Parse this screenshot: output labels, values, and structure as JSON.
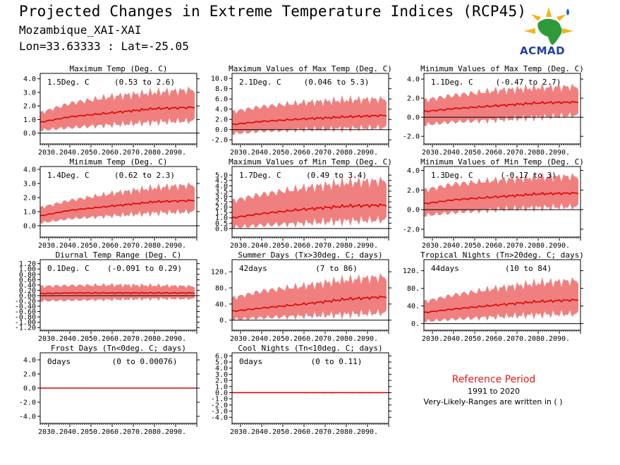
{
  "header": {
    "title": "Projected Changes in Extreme Temperature Indices (RCP45)",
    "region": "Mozambique_XAI-XAI",
    "coords": "Lon=33.63333 : Lat=-25.05"
  },
  "logo": {
    "text": "ACMAD"
  },
  "reference": {
    "title": "Reference Period",
    "years": "1991 to 2020",
    "note": "Very-Likely-Ranges are written in ( )"
  },
  "colors": {
    "band": "#f08080",
    "line": "#e00000",
    "zero": "#000000",
    "ref_title": "#e01a1a"
  },
  "chart_data": [
    {
      "type": "area",
      "title": "Maximum Temp (Deg. C)",
      "value": "1.5Deg. C",
      "range": "(0.53 to 2.6)",
      "ylim": [
        -0.8,
        4.4
      ],
      "yticks": [
        0,
        1,
        2,
        3,
        4
      ],
      "ytick_labels": [
        "0.0",
        "1.0",
        "2.0",
        "3.0",
        "4.0"
      ],
      "xlim": [
        2026,
        2100
      ],
      "xticks": [
        2030,
        2040,
        2050,
        2060,
        2070,
        2080,
        2090
      ],
      "xtick_labels": [
        "2030.",
        "2040.",
        "2050.",
        "2060.",
        "2070.",
        "2080.",
        "2090."
      ],
      "series": {
        "years": [
          2026,
          2040,
          2060,
          2080,
          2099
        ],
        "median": [
          0.8,
          1.2,
          1.5,
          1.8,
          1.9
        ],
        "low": [
          0.2,
          0.4,
          0.6,
          0.8,
          0.9
        ],
        "high": [
          1.5,
          2.2,
          2.7,
          3.0,
          3.2
        ]
      }
    },
    {
      "type": "area",
      "title": "Maximum Values of Max Temp (Deg. C)",
      "value": "2.1Deg. C",
      "range": "(0.046 to 5.3)",
      "ylim": [
        -2.8,
        11
      ],
      "yticks": [
        -2,
        0,
        2,
        4,
        6,
        8,
        10
      ],
      "ytick_labels": [
        "-2.0",
        "0.0",
        "2.0",
        "4.0",
        "6.0",
        "8.0",
        "10.0"
      ],
      "xlim": [
        2026,
        2100
      ],
      "xticks": [
        2030,
        2040,
        2050,
        2060,
        2070,
        2080,
        2090
      ],
      "xtick_labels": [
        "2030.",
        "2040.",
        "2050.",
        "2060.",
        "2070.",
        "2080.",
        "2090."
      ],
      "series": {
        "years": [
          2026,
          2040,
          2060,
          2080,
          2099
        ],
        "median": [
          1.0,
          1.6,
          2.1,
          2.5,
          2.8
        ],
        "low": [
          -0.8,
          -0.3,
          0.0,
          0.2,
          0.4
        ],
        "high": [
          3.5,
          4.5,
          5.3,
          5.8,
          6.0
        ]
      }
    },
    {
      "type": "area",
      "title": "Minimum Values of Max Temp (Deg. C)",
      "value": "1.1Deg. C",
      "range": "(-0.47 to 2.7)",
      "ylim": [
        -2.8,
        4.6
      ],
      "yticks": [
        -2,
        0,
        2,
        4
      ],
      "ytick_labels": [
        "-2.0",
        "0.0",
        "2.0",
        "4.0"
      ],
      "xlim": [
        2026,
        2100
      ],
      "xticks": [
        2030,
        2040,
        2050,
        2060,
        2070,
        2080,
        2090
      ],
      "xtick_labels": [
        "2030.",
        "2040.",
        "2050.",
        "2060.",
        "2070.",
        "2080.",
        "2090."
      ],
      "series": {
        "years": [
          2026,
          2040,
          2060,
          2080,
          2099
        ],
        "median": [
          0.6,
          0.9,
          1.2,
          1.5,
          1.6
        ],
        "low": [
          -0.8,
          -0.5,
          -0.3,
          0.0,
          0.2
        ],
        "high": [
          1.8,
          2.3,
          2.8,
          3.1,
          3.2
        ]
      }
    },
    {
      "type": "area",
      "title": "Minimum Temp (Deg. C)",
      "value": "1.4Deg. C",
      "range": "(0.62 to 2.3)",
      "ylim": [
        -0.8,
        4.2
      ],
      "yticks": [
        0,
        1,
        2,
        3,
        4
      ],
      "ytick_labels": [
        "0.0",
        "1.0",
        "2.0",
        "3.0",
        "4.0"
      ],
      "xlim": [
        2026,
        2100
      ],
      "xticks": [
        2030,
        2040,
        2050,
        2060,
        2070,
        2080,
        2090
      ],
      "xtick_labels": [
        "2030.",
        "2040.",
        "2050.",
        "2060.",
        "2070.",
        "2080.",
        "2090."
      ],
      "series": {
        "years": [
          2026,
          2040,
          2060,
          2080,
          2099
        ],
        "median": [
          0.7,
          1.1,
          1.4,
          1.7,
          1.8
        ],
        "low": [
          0.2,
          0.5,
          0.7,
          0.9,
          1.0
        ],
        "high": [
          1.3,
          1.8,
          2.3,
          2.7,
          2.9
        ]
      }
    },
    {
      "type": "area",
      "title": "Maximum Values of Min Temp (Deg. C)",
      "value": "1.7Deg. C",
      "range": "(0.49 to 3.4)",
      "ylim": [
        -0.8,
        5.8
      ],
      "yticks": [
        0,
        0.5,
        1,
        1.5,
        2,
        2.5,
        3,
        3.5,
        4,
        4.5,
        5
      ],
      "ytick_labels": [
        "0.0",
        "0.5",
        "1.0",
        "1.5",
        "2.0",
        "2.5",
        "3.0",
        "3.5",
        "4.0",
        "4.5",
        "5.0"
      ],
      "xlim": [
        2026,
        2100
      ],
      "xticks": [
        2030,
        2040,
        2050,
        2060,
        2070,
        2080,
        2090
      ],
      "xtick_labels": [
        "2030.",
        "2040.",
        "2050.",
        "2060.",
        "2070.",
        "2080.",
        "2090."
      ],
      "series": {
        "years": [
          2026,
          2040,
          2060,
          2080,
          2099
        ],
        "median": [
          1.0,
          1.4,
          1.8,
          2.1,
          2.2
        ],
        "low": [
          0.1,
          0.3,
          0.5,
          0.7,
          0.8
        ],
        "high": [
          2.6,
          3.2,
          3.8,
          4.3,
          4.5
        ]
      }
    },
    {
      "type": "area",
      "title": "Minimum Values of Min Temp (Deg. C)",
      "value": "1.3Deg. C",
      "range": "(-0.17 to 3)",
      "ylim": [
        -2.8,
        4.4
      ],
      "yticks": [
        -2,
        0,
        2,
        4
      ],
      "ytick_labels": [
        "-2.0",
        "0.0",
        "2.0",
        "4.0"
      ],
      "xlim": [
        2026,
        2100
      ],
      "xticks": [
        2030,
        2040,
        2050,
        2060,
        2070,
        2080,
        2090
      ],
      "xtick_labels": [
        "2030.",
        "2040.",
        "2050.",
        "2060.",
        "2070.",
        "2080.",
        "2090."
      ],
      "series": {
        "years": [
          2026,
          2040,
          2060,
          2080,
          2099
        ],
        "median": [
          0.6,
          1.0,
          1.3,
          1.6,
          1.7
        ],
        "low": [
          -0.6,
          -0.3,
          0.0,
          0.2,
          0.3
        ],
        "high": [
          2.0,
          2.6,
          3.0,
          3.3,
          3.4
        ]
      }
    },
    {
      "type": "area",
      "title": "Diurnal Temp Range (Deg. C)",
      "value": "0.1Deg. C",
      "range": "(-0.091 to 0.29)",
      "ylim": [
        -1.3,
        1.35
      ],
      "yticks": [
        -1.2,
        -1.0,
        -0.8,
        -0.6,
        -0.4,
        -0.2,
        0,
        0.2,
        0.4,
        0.6,
        0.8,
        1.0,
        1.2
      ],
      "ytick_labels": [
        "-1.20",
        "-1.00",
        "-0.80",
        "-0.60",
        "-0.40",
        "-0.20",
        "0.00",
        "0.20",
        "0.40",
        "0.60",
        "0.80",
        "1.00",
        "1.20"
      ],
      "xlim": [
        2026,
        2100
      ],
      "xticks": [
        2030,
        2040,
        2050,
        2060,
        2070,
        2080,
        2090
      ],
      "xtick_labels": [
        "2030.",
        "2040.",
        "2050.",
        "2060.",
        "2070.",
        "2080.",
        "2090."
      ],
      "series": {
        "years": [
          2026,
          2040,
          2060,
          2080,
          2099
        ],
        "median": [
          0.08,
          0.1,
          0.1,
          0.1,
          0.1
        ],
        "low": [
          -0.2,
          -0.18,
          -0.15,
          -0.12,
          -0.12
        ],
        "high": [
          0.35,
          0.38,
          0.4,
          0.38,
          0.35
        ]
      }
    },
    {
      "type": "area",
      "title": "Summer Days (Tx>30deg. C; days)",
      "value": "42days",
      "range": "(7 to 86)",
      "ylim": [
        -25,
        150
      ],
      "yticks": [
        0,
        40,
        80,
        120
      ],
      "ytick_labels": [
        "0.",
        "40.",
        "80.",
        "120."
      ],
      "xlim": [
        2026,
        2100
      ],
      "xticks": [
        2030,
        2040,
        2050,
        2060,
        2070,
        2080,
        2090
      ],
      "xtick_labels": [
        "2030.",
        "2040.",
        "2050.",
        "2060.",
        "2070.",
        "2080.",
        "2090."
      ],
      "series": {
        "years": [
          2026,
          2040,
          2060,
          2080,
          2099
        ],
        "median": [
          22,
          30,
          40,
          52,
          58
        ],
        "low": [
          2,
          6,
          10,
          14,
          18
        ],
        "high": [
          55,
          72,
          85,
          100,
          108
        ]
      }
    },
    {
      "type": "area",
      "title": "Tropical Nights (Tn>20deg. C; days)",
      "value": "44days",
      "range": "(10 to 84)",
      "ylim": [
        -15,
        145
      ],
      "yticks": [
        0,
        40,
        80,
        120
      ],
      "ytick_labels": [
        "0.",
        "40.",
        "80.",
        "120."
      ],
      "xlim": [
        2026,
        2100
      ],
      "xticks": [
        2030,
        2040,
        2050,
        2060,
        2070,
        2080,
        2090
      ],
      "xtick_labels": [
        "2030.",
        "2040.",
        "2050.",
        "2060.",
        "2070.",
        "2080.",
        "2090."
      ],
      "series": {
        "years": [
          2026,
          2040,
          2060,
          2080,
          2099
        ],
        "median": [
          25,
          33,
          42,
          50,
          54
        ],
        "low": [
          5,
          10,
          15,
          20,
          22
        ],
        "high": [
          50,
          65,
          80,
          92,
          98
        ]
      }
    },
    {
      "type": "area",
      "title": "Frost Days (Tn<0deg. C; days)",
      "value": "0days",
      "range": "(0 to 0.00076)",
      "ylim": [
        -5,
        5
      ],
      "yticks": [
        -4,
        -2,
        0,
        2,
        4
      ],
      "ytick_labels": [
        "-4.0",
        "-2.0",
        "0.0",
        "2.0",
        "4.0"
      ],
      "xlim": [
        2026,
        2100
      ],
      "xticks": [
        2030,
        2040,
        2050,
        2060,
        2070,
        2080,
        2090
      ],
      "xtick_labels": [
        "2030.",
        "2040.",
        "2050.",
        "2060.",
        "2070.",
        "2080.",
        "2090."
      ],
      "series": {
        "years": [
          2026,
          2099
        ],
        "median": [
          0,
          0
        ],
        "low": [
          0,
          0
        ],
        "high": [
          0.05,
          0.05
        ]
      }
    },
    {
      "type": "area",
      "title": "Cool Nights (Tn<10deg. C; days)",
      "value": "0days",
      "range": "(0 to 0.11)",
      "ylim": [
        -5,
        6.5
      ],
      "yticks": [
        -4,
        -3,
        -2,
        -1,
        0,
        1,
        2,
        3,
        4,
        5,
        6
      ],
      "ytick_labels": [
        "-4.0",
        "-3.0",
        "-2.0",
        "-1.0",
        "0.0",
        "1.0",
        "2.0",
        "3.0",
        "4.0",
        "5.0",
        "6.0"
      ],
      "xlim": [
        2026,
        2100
      ],
      "xticks": [
        2030,
        2040,
        2050,
        2060,
        2070,
        2080,
        2090
      ],
      "xtick_labels": [
        "2030.",
        "2040.",
        "2050.",
        "2060.",
        "2070.",
        "2080.",
        "2090."
      ],
      "series": {
        "years": [
          2026,
          2099
        ],
        "median": [
          0,
          0
        ],
        "low": [
          0,
          0
        ],
        "high": [
          0.1,
          0.1
        ]
      }
    }
  ]
}
